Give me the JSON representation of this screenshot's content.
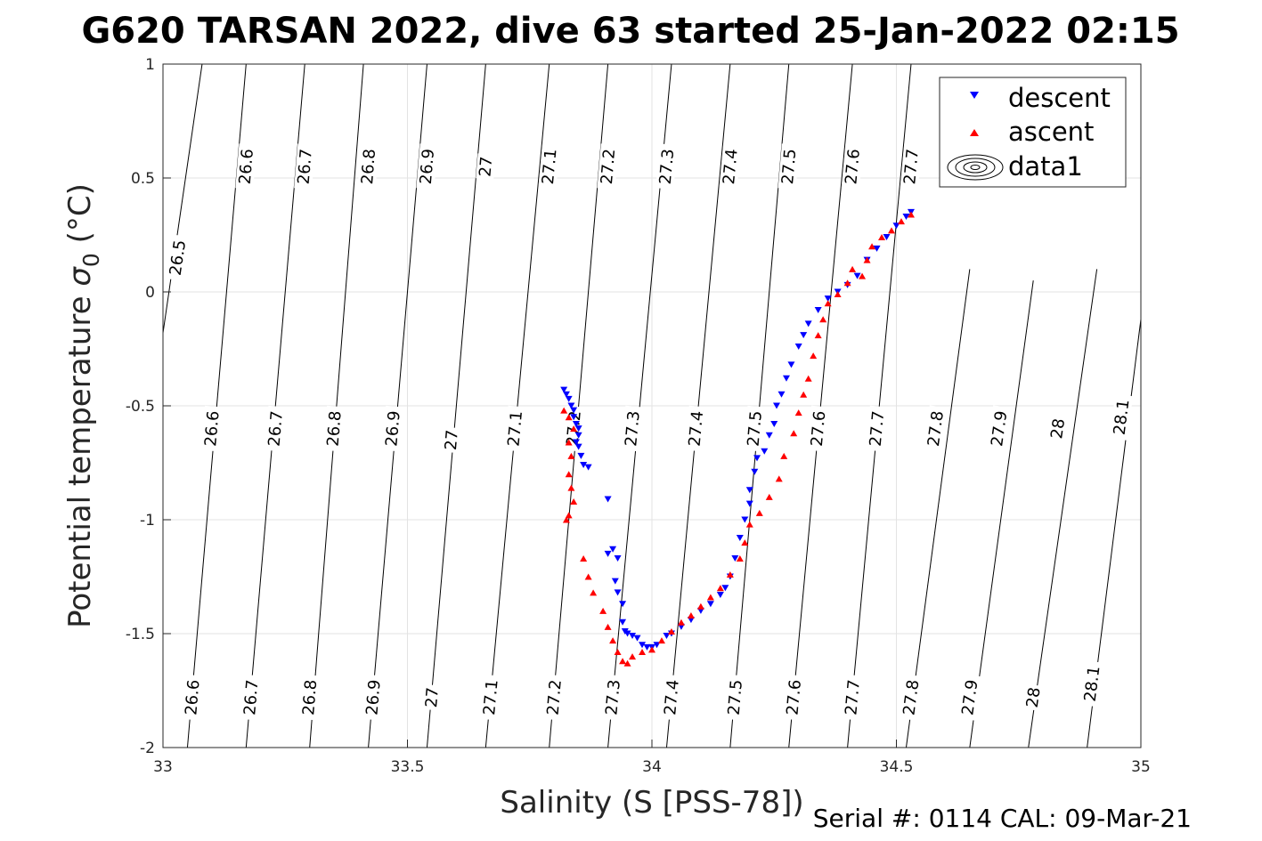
{
  "figure": {
    "title": "G620 TARSAN 2022, dive 63 started 25-Jan-2022 02:15",
    "footer": "Serial #: 0114  CAL: 09-Mar-21"
  },
  "chart_data": {
    "type": "scatter",
    "title": "G620 TARSAN 2022, dive 63 started 25-Jan-2022 02:15",
    "xlabel": "Salinity (S [PSS-78])",
    "ylabel_prefix": "Potential temperature ",
    "ylabel_sigma": "σ",
    "ylabel_sub": "0",
    "ylabel_suffix": " (°C)",
    "xlim": [
      33,
      35
    ],
    "ylim": [
      -2,
      1
    ],
    "xticks": [
      33,
      33.5,
      34,
      34.5,
      35
    ],
    "yticks": [
      -2,
      -1.5,
      -1,
      -0.5,
      0,
      0.5,
      1
    ],
    "grid": true,
    "legend_position": "top-right",
    "legend": [
      {
        "label": "descent",
        "marker": "triangle-down",
        "color": "#0000ff"
      },
      {
        "label": "ascent",
        "marker": "triangle-up",
        "color": "#ff0000"
      },
      {
        "label": "data1",
        "marker": "contour"
      }
    ],
    "contours": {
      "levels": [
        26.5,
        26.6,
        26.7,
        26.8,
        26.9,
        27,
        27.1,
        27.2,
        27.3,
        27.4,
        27.5,
        27.6,
        27.7,
        27.8,
        27.9,
        28,
        28.1
      ],
      "level_labels": [
        "26.5",
        "26.6",
        "26.7",
        "26.8",
        "26.9",
        "27",
        "27.1",
        "27.2",
        "27.3",
        "27.4",
        "27.5",
        "27.6",
        "27.7",
        "27.8",
        "27.9",
        "28",
        "28.1"
      ],
      "lines": [
        {
          "label": "26.5",
          "points": [
            [
              33.0,
              -0.18
            ],
            [
              33.08,
              1.0
            ]
          ],
          "label_at": [
            [
              33.03,
              0.15
            ]
          ]
        },
        {
          "label": "26.6",
          "points": [
            [
              33.05,
              -2.0
            ],
            [
              33.17,
              1.0
            ]
          ],
          "label_at": [
            [
              33.06,
              -1.78
            ],
            [
              33.1,
              -0.6
            ],
            [
              33.17,
              0.55
            ]
          ]
        },
        {
          "label": "26.7",
          "points": [
            [
              33.17,
              -2.0
            ],
            [
              33.29,
              1.0
            ]
          ],
          "label_at": [
            [
              33.18,
              -1.78
            ],
            [
              33.23,
              -0.6
            ],
            [
              33.29,
              0.55
            ]
          ]
        },
        {
          "label": "26.8",
          "points": [
            [
              33.3,
              -2.0
            ],
            [
              33.41,
              1.0
            ]
          ],
          "label_at": [
            [
              33.3,
              -1.78
            ],
            [
              33.35,
              -0.6
            ],
            [
              33.42,
              0.55
            ]
          ]
        },
        {
          "label": "26.9",
          "points": [
            [
              33.42,
              -2.0
            ],
            [
              33.54,
              1.0
            ]
          ],
          "label_at": [
            [
              33.43,
              -1.78
            ],
            [
              33.47,
              -0.6
            ],
            [
              33.54,
              0.55
            ]
          ]
        },
        {
          "label": "27",
          "points": [
            [
              33.54,
              -2.0
            ],
            [
              33.66,
              1.0
            ]
          ],
          "label_at": [
            [
              33.55,
              -1.78
            ],
            [
              33.59,
              -0.65
            ],
            [
              33.66,
              0.55
            ]
          ]
        },
        {
          "label": "27.1",
          "points": [
            [
              33.66,
              -2.0
            ],
            [
              33.79,
              1.0
            ]
          ],
          "label_at": [
            [
              33.67,
              -1.78
            ],
            [
              33.72,
              -0.6
            ],
            [
              33.79,
              0.55
            ]
          ]
        },
        {
          "label": "27.2",
          "points": [
            [
              33.79,
              -2.0
            ],
            [
              33.91,
              1.0
            ]
          ],
          "label_at": [
            [
              33.8,
              -1.78
            ],
            [
              33.84,
              -0.6
            ],
            [
              33.91,
              0.55
            ]
          ]
        },
        {
          "label": "27.3",
          "points": [
            [
              33.91,
              -2.0
            ],
            [
              34.04,
              1.0
            ]
          ],
          "label_at": [
            [
              33.92,
              -1.78
            ],
            [
              33.96,
              -0.6
            ],
            [
              34.03,
              0.55
            ]
          ]
        },
        {
          "label": "27.4",
          "points": [
            [
              34.03,
              -2.0
            ],
            [
              34.16,
              1.0
            ]
          ],
          "label_at": [
            [
              34.04,
              -1.78
            ],
            [
              34.09,
              -0.6
            ],
            [
              34.16,
              0.55
            ]
          ]
        },
        {
          "label": "27.5",
          "points": [
            [
              34.16,
              -2.0
            ],
            [
              34.28,
              1.0
            ]
          ],
          "label_at": [
            [
              34.17,
              -1.78
            ],
            [
              34.21,
              -0.6
            ],
            [
              34.28,
              0.55
            ]
          ]
        },
        {
          "label": "27.6",
          "points": [
            [
              34.28,
              -2.0
            ],
            [
              34.41,
              1.0
            ]
          ],
          "label_at": [
            [
              34.29,
              -1.78
            ],
            [
              34.34,
              -0.6
            ],
            [
              34.41,
              0.55
            ]
          ]
        },
        {
          "label": "27.7",
          "points": [
            [
              34.4,
              -2.0
            ],
            [
              34.53,
              1.0
            ]
          ],
          "label_at": [
            [
              34.41,
              -1.78
            ],
            [
              34.46,
              -0.6
            ],
            [
              34.53,
              0.55
            ]
          ]
        },
        {
          "label": "27.8",
          "points": [
            [
              34.52,
              -2.0
            ],
            [
              34.65,
              0.1
            ]
          ],
          "label_at": [
            [
              34.53,
              -1.78
            ],
            [
              34.58,
              -0.6
            ]
          ]
        },
        {
          "label": "27.9",
          "points": [
            [
              34.65,
              -2.0
            ],
            [
              34.78,
              0.05
            ]
          ],
          "label_at": [
            [
              34.65,
              -1.78
            ],
            [
              34.71,
              -0.6
            ]
          ]
        },
        {
          "label": "28",
          "points": [
            [
              34.77,
              -2.0
            ],
            [
              34.91,
              0.1
            ]
          ],
          "label_at": [
            [
              34.78,
              -1.78
            ],
            [
              34.83,
              -0.6
            ]
          ]
        },
        {
          "label": "28.1",
          "points": [
            [
              34.89,
              -2.0
            ],
            [
              35.0,
              -0.12
            ]
          ],
          "label_at": [
            [
              34.9,
              -1.72
            ],
            [
              34.96,
              -0.55
            ]
          ]
        }
      ]
    },
    "series": [
      {
        "name": "descent",
        "color": "#0000ff",
        "marker": "triangle-down",
        "points": [
          [
            33.82,
            -0.43
          ],
          [
            33.825,
            -0.45
          ],
          [
            33.83,
            -0.47
          ],
          [
            33.835,
            -0.5
          ],
          [
            33.84,
            -0.52
          ],
          [
            33.84,
            -0.55
          ],
          [
            33.845,
            -0.58
          ],
          [
            33.85,
            -0.6
          ],
          [
            33.85,
            -0.63
          ],
          [
            33.845,
            -0.66
          ],
          [
            33.85,
            -0.68
          ],
          [
            33.855,
            -0.72
          ],
          [
            33.86,
            -0.76
          ],
          [
            33.87,
            -0.77
          ],
          [
            33.91,
            -0.91
          ],
          [
            33.91,
            -1.15
          ],
          [
            33.92,
            -1.13
          ],
          [
            33.93,
            -1.17
          ],
          [
            33.925,
            -1.27
          ],
          [
            33.93,
            -1.32
          ],
          [
            33.94,
            -1.37
          ],
          [
            33.94,
            -1.45
          ],
          [
            33.945,
            -1.49
          ],
          [
            33.95,
            -1.5
          ],
          [
            33.96,
            -1.51
          ],
          [
            33.97,
            -1.52
          ],
          [
            33.98,
            -1.55
          ],
          [
            33.99,
            -1.56
          ],
          [
            34.0,
            -1.56
          ],
          [
            34.01,
            -1.55
          ],
          [
            34.03,
            -1.51
          ],
          [
            34.04,
            -1.5
          ],
          [
            34.06,
            -1.47
          ],
          [
            34.08,
            -1.44
          ],
          [
            34.1,
            -1.4
          ],
          [
            34.12,
            -1.37
          ],
          [
            34.14,
            -1.33
          ],
          [
            34.15,
            -1.3
          ],
          [
            34.16,
            -1.25
          ],
          [
            34.17,
            -1.17
          ],
          [
            34.18,
            -1.08
          ],
          [
            34.19,
            -1.0
          ],
          [
            34.2,
            -0.93
          ],
          [
            34.2,
            -0.87
          ],
          [
            34.21,
            -0.79
          ],
          [
            34.215,
            -0.73
          ],
          [
            34.23,
            -0.7
          ],
          [
            34.24,
            -0.63
          ],
          [
            34.25,
            -0.58
          ],
          [
            34.255,
            -0.5
          ],
          [
            34.265,
            -0.45
          ],
          [
            34.275,
            -0.38
          ],
          [
            34.285,
            -0.32
          ],
          [
            34.3,
            -0.24
          ],
          [
            34.31,
            -0.19
          ],
          [
            34.32,
            -0.14
          ],
          [
            34.34,
            -0.08
          ],
          [
            34.36,
            -0.03
          ],
          [
            34.38,
            0.0
          ],
          [
            34.4,
            0.03
          ],
          [
            34.42,
            0.07
          ],
          [
            34.44,
            0.14
          ],
          [
            34.46,
            0.19
          ],
          [
            34.48,
            0.24
          ],
          [
            34.5,
            0.29
          ],
          [
            34.52,
            0.33
          ],
          [
            34.53,
            0.35
          ]
        ]
      },
      {
        "name": "ascent",
        "color": "#ff0000",
        "marker": "triangle-up",
        "points": [
          [
            33.82,
            -0.52
          ],
          [
            33.83,
            -0.55
          ],
          [
            33.84,
            -0.6
          ],
          [
            33.83,
            -0.66
          ],
          [
            33.835,
            -0.72
          ],
          [
            33.83,
            -0.8
          ],
          [
            33.835,
            -0.86
          ],
          [
            33.84,
            -0.92
          ],
          [
            33.83,
            -0.98
          ],
          [
            33.825,
            -1.0
          ],
          [
            33.86,
            -1.17
          ],
          [
            33.87,
            -1.25
          ],
          [
            33.88,
            -1.32
          ],
          [
            33.9,
            -1.4
          ],
          [
            33.91,
            -1.47
          ],
          [
            33.92,
            -1.53
          ],
          [
            33.93,
            -1.58
          ],
          [
            33.94,
            -1.62
          ],
          [
            33.95,
            -1.63
          ],
          [
            33.96,
            -1.6
          ],
          [
            33.98,
            -1.58
          ],
          [
            34.0,
            -1.57
          ],
          [
            34.02,
            -1.53
          ],
          [
            34.04,
            -1.49
          ],
          [
            34.06,
            -1.45
          ],
          [
            34.08,
            -1.42
          ],
          [
            34.1,
            -1.38
          ],
          [
            34.12,
            -1.34
          ],
          [
            34.14,
            -1.3
          ],
          [
            34.16,
            -1.24
          ],
          [
            34.18,
            -1.17
          ],
          [
            34.19,
            -1.1
          ],
          [
            34.2,
            -1.02
          ],
          [
            34.22,
            -0.97
          ],
          [
            34.24,
            -0.9
          ],
          [
            34.26,
            -0.82
          ],
          [
            34.27,
            -0.72
          ],
          [
            34.29,
            -0.62
          ],
          [
            34.3,
            -0.53
          ],
          [
            34.31,
            -0.45
          ],
          [
            34.32,
            -0.38
          ],
          [
            34.33,
            -0.28
          ],
          [
            34.34,
            -0.19
          ],
          [
            34.35,
            -0.12
          ],
          [
            34.36,
            -0.05
          ],
          [
            34.38,
            -0.01
          ],
          [
            34.4,
            0.04
          ],
          [
            34.41,
            0.1
          ],
          [
            34.43,
            0.07
          ],
          [
            34.44,
            0.14
          ],
          [
            34.45,
            0.2
          ],
          [
            34.47,
            0.24
          ],
          [
            34.49,
            0.27
          ],
          [
            34.51,
            0.31
          ],
          [
            34.53,
            0.34
          ]
        ]
      }
    ]
  }
}
